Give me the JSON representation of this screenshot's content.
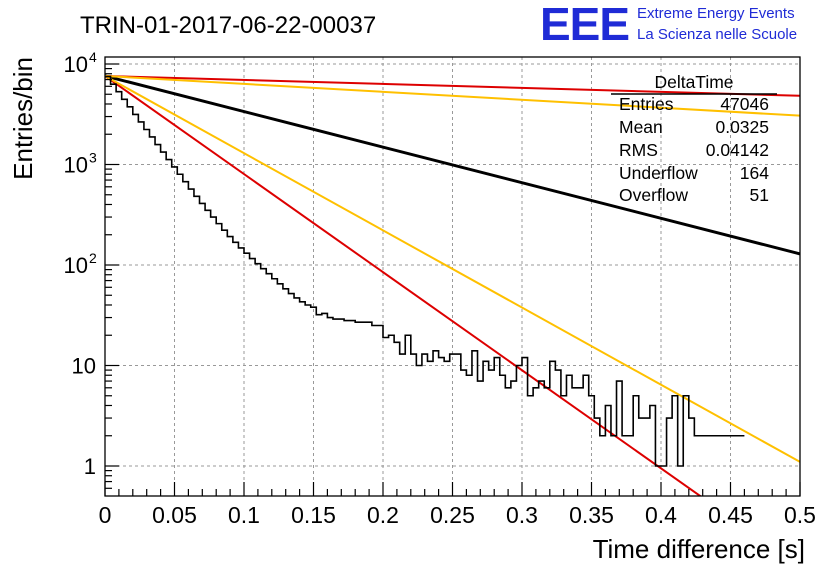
{
  "plot_title": "TRIN-01-2017-06-22-00037",
  "logo": {
    "mark": "EEE",
    "line1": "Extreme Energy Events",
    "line2": "La Scienza nelle Scuole",
    "color": "#1f2bd6"
  },
  "stats": {
    "name": "DeltaTime",
    "rows": [
      {
        "label": "Entries",
        "value": "47046"
      },
      {
        "label": "Mean",
        "value": "0.0325"
      },
      {
        "label": "RMS",
        "value": "0.04142"
      },
      {
        "label": "Underflow",
        "value": "164"
      },
      {
        "label": "Overflow",
        "value": "51"
      }
    ]
  },
  "chart_data": {
    "type": "line",
    "xlabel": "Time difference [s]",
    "ylabel": "Entries/bin",
    "xlim": [
      0,
      0.5
    ],
    "ylim": [
      0.5,
      14000
    ],
    "y_scale": "log",
    "grid": true,
    "x_ticks": [
      {
        "v": 0,
        "label": "0"
      },
      {
        "v": 0.05,
        "label": "0.05"
      },
      {
        "v": 0.1,
        "label": "0.1"
      },
      {
        "v": 0.15,
        "label": "0.15"
      },
      {
        "v": 0.2,
        "label": "0.2"
      },
      {
        "v": 0.25,
        "label": "0.25"
      },
      {
        "v": 0.3,
        "label": "0.3"
      },
      {
        "v": 0.35,
        "label": "0.35"
      },
      {
        "v": 0.4,
        "label": "0.4"
      },
      {
        "v": 0.45,
        "label": "0.45"
      },
      {
        "v": 0.5,
        "label": "0.5"
      }
    ],
    "y_ticks": [
      {
        "v": 1,
        "base": "1",
        "exp": ""
      },
      {
        "v": 10,
        "base": "10",
        "exp": ""
      },
      {
        "v": 100,
        "base": "10",
        "exp": "2"
      },
      {
        "v": 1000,
        "base": "10",
        "exp": "3"
      },
      {
        "v": 10000,
        "base": "10",
        "exp": "4"
      }
    ],
    "histogram": {
      "color": "#000000",
      "bin_width": 0.004,
      "x_start": 0,
      "values": [
        7500,
        6300,
        5300,
        4450,
        3750,
        3150,
        2650,
        2230,
        1880,
        1580,
        1330,
        1120,
        945,
        800,
        675,
        570,
        482,
        410,
        350,
        300,
        258,
        222,
        192,
        168,
        148,
        131,
        116,
        103,
        92,
        82,
        73,
        65,
        58,
        52,
        47,
        43,
        40,
        38,
        32,
        33,
        30,
        29,
        29,
        28,
        28,
        27,
        27,
        27,
        25,
        25,
        19,
        20,
        17,
        13,
        20,
        13,
        10,
        13,
        11,
        14,
        12,
        11,
        13,
        13,
        9,
        8,
        14,
        7,
        11,
        9,
        12,
        8,
        6,
        7,
        10,
        12,
        5,
        6,
        7,
        6,
        11,
        9,
        5,
        8,
        6,
        6,
        8,
        5,
        3,
        2,
        4,
        2,
        7,
        2,
        2,
        5,
        3,
        3,
        4,
        1,
        1,
        3,
        5,
        1,
        5,
        3,
        2,
        2,
        2,
        2,
        2,
        2,
        2,
        2,
        2
      ]
    },
    "fits": [
      {
        "color": "#000000",
        "y0": 7600,
        "slope_per_s": -35.4
      },
      {
        "color": "#dd0000",
        "y0": 7600,
        "slope_per_s": -97.6
      },
      {
        "color": "#ffc000",
        "y0": 7600,
        "slope_per_s": -76.8
      },
      {
        "color": "#dd0000",
        "y0": 7600,
        "slope_per_s": -3.94
      },
      {
        "color": "#ffc000",
        "y0": 7600,
        "slope_per_s": -7.9
      }
    ]
  }
}
